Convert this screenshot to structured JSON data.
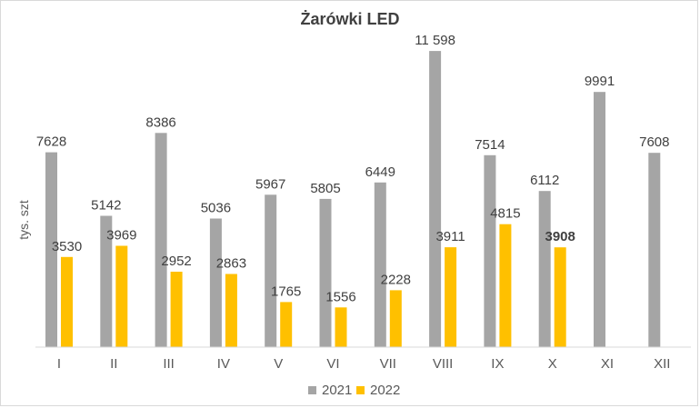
{
  "chart_data": {
    "type": "bar",
    "title": "Żarówki LED",
    "xlabel": "",
    "ylabel": "tys. szt",
    "categories": [
      "I",
      "II",
      "III",
      "IV",
      "V",
      "VI",
      "VII",
      "VIII",
      "IX",
      "X",
      "XI",
      "XII"
    ],
    "series": [
      {
        "name": "2021",
        "color": "#a5a5a5",
        "values": [
          7628,
          5142,
          8386,
          5036,
          5967,
          5805,
          6449,
          11598,
          7514,
          6112,
          9991,
          7608
        ],
        "labels": [
          "7628",
          "5142",
          "8386",
          "5036",
          "5967",
          "5805",
          "6449",
          "11 598",
          "7514",
          "6112",
          "9991",
          "7608"
        ]
      },
      {
        "name": "2022",
        "color": "#ffc000",
        "values": [
          3530,
          3969,
          2952,
          2863,
          1765,
          1556,
          2228,
          3911,
          4815,
          3908,
          null,
          null
        ],
        "labels": [
          "3530",
          "3969",
          "2952",
          "2863",
          "1765",
          "1556",
          "2228",
          "3911",
          "4815",
          "3908",
          "",
          ""
        ],
        "bold_label_index": 9
      }
    ],
    "ylim": [
      0,
      11600
    ],
    "grid": false,
    "legend_position": "bottom"
  }
}
